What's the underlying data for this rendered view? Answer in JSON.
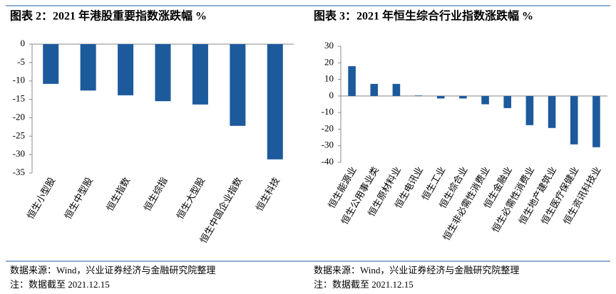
{
  "chart_data": [
    {
      "type": "bar",
      "title": "图表 2：2021 年港股重要指数涨跌幅 %",
      "categories": [
        "恒生小型股",
        "恒生中型股",
        "恒生指数",
        "恒生综指",
        "恒生大型股",
        "恒生中国企业指数",
        "恒生科技"
      ],
      "values": [
        -10.8,
        -12.6,
        -13.9,
        -15.5,
        -16.4,
        -22.2,
        -31.3
      ],
      "color": "#1c5a9c",
      "ylim": [
        -35,
        0
      ],
      "yticks": [
        0,
        -5,
        -10,
        -15,
        -20,
        -25,
        -30,
        -35
      ],
      "grid": false,
      "source": "数据来源：Wind，兴业证券经济与金融研究院整理",
      "note": "注：数据截至 2021.12.15"
    },
    {
      "type": "bar",
      "title": "图表 3：2021 年恒生综合行业指数涨跌幅 %",
      "categories": [
        "恒生能源业",
        "恒生公用事业类",
        "恒生原材料业",
        "恒生电讯业",
        "恒生工业",
        "恒生综合业",
        "恒生非必需性消费业",
        "恒生金融业",
        "恒生必需性消费业",
        "恒生地产建筑业",
        "恒生医疗保健业",
        "恒生资讯科技业"
      ],
      "values": [
        18,
        7.3,
        7.3,
        0.3,
        -1.5,
        -1.5,
        -5,
        -7.3,
        -17.6,
        -19.3,
        -29.2,
        -30.9
      ],
      "color": "#1c5a9c",
      "ylim": [
        -40,
        30
      ],
      "yticks": [
        30,
        20,
        10,
        0,
        -10,
        -20,
        -30,
        -40
      ],
      "grid": false,
      "source": "数据来源：Wind，兴业证券经济与金融研究院整理",
      "note": "注：数据截至 2021.12.15"
    }
  ]
}
